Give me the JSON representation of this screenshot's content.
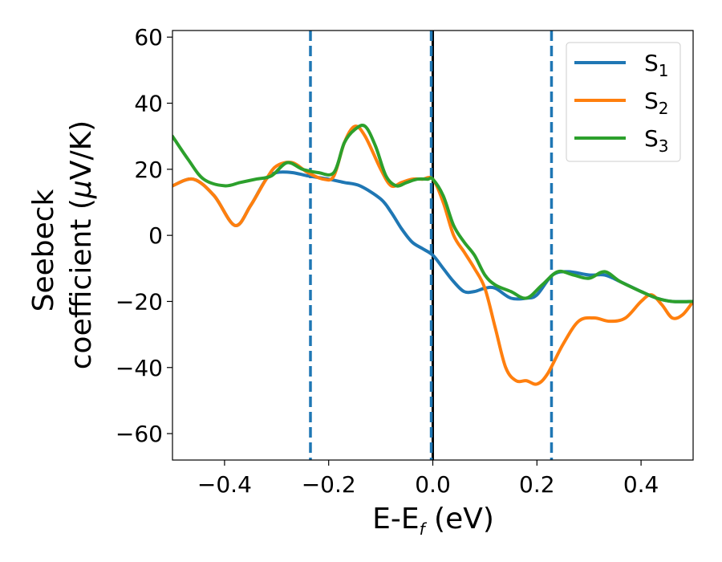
{
  "chart_data": {
    "type": "line",
    "xlabel": {
      "main": "E-E",
      "sub": "f",
      "rest": " (eV)"
    },
    "ylabel": {
      "line1": "Seebeck",
      "line2_prefix": "coefficient  (",
      "line2_mu": "μ",
      "line2_suffix": "V/K)"
    },
    "xlim": [
      -0.5,
      0.5
    ],
    "ylim": [
      -68,
      62
    ],
    "xticks": [
      -0.4,
      -0.2,
      0.0,
      0.2,
      0.4
    ],
    "xtick_labels": [
      "−0.4",
      "−0.2",
      "0.0",
      "0.2",
      "0.4"
    ],
    "yticks": [
      -60,
      -40,
      -20,
      0,
      20,
      40,
      60
    ],
    "ytick_labels": [
      "−60",
      "−40",
      "−20",
      "0",
      "20",
      "40",
      "60"
    ],
    "legend_position": "top-right",
    "vlines": [
      {
        "x": -0.235,
        "style": "dashed",
        "color": "#1f77b4"
      },
      {
        "x": 0.0,
        "style": "solid",
        "color": "#000000"
      },
      {
        "x": -0.003,
        "style": "dashed",
        "color": "#1f77b4"
      },
      {
        "x": 0.228,
        "style": "dashed",
        "color": "#1f77b4"
      }
    ],
    "series": [
      {
        "name_main": "S",
        "name_sub": "1",
        "color": "#1f77b4",
        "x": [
          -0.5,
          -0.46,
          -0.42,
          -0.38,
          -0.35,
          -0.32,
          -0.3,
          -0.27,
          -0.24,
          -0.2,
          -0.17,
          -0.14,
          -0.1,
          -0.08,
          -0.06,
          -0.04,
          -0.02,
          0.0,
          0.02,
          0.04,
          0.06,
          0.08,
          0.1,
          0.12,
          0.15,
          0.18,
          0.2,
          0.23,
          0.26,
          0.3,
          0.33,
          0.36,
          0.4,
          0.43,
          0.46,
          0.5
        ],
        "y": [
          15,
          17,
          12,
          3,
          9,
          17,
          19,
          19,
          18,
          17,
          16,
          15,
          11,
          7,
          2,
          -2,
          -4,
          -6,
          -10,
          -14,
          -17,
          -17,
          -16,
          -16,
          -19,
          -19,
          -18,
          -12,
          -11,
          -12,
          -12,
          -14,
          -17,
          -19,
          -20,
          -20
        ]
      },
      {
        "name_main": "S",
        "name_sub": "2",
        "color": "#ff7f0e",
        "x": [
          -0.5,
          -0.46,
          -0.42,
          -0.38,
          -0.35,
          -0.32,
          -0.3,
          -0.27,
          -0.24,
          -0.21,
          -0.19,
          -0.17,
          -0.15,
          -0.13,
          -0.1,
          -0.08,
          -0.06,
          -0.04,
          -0.02,
          0.0,
          0.02,
          0.04,
          0.06,
          0.08,
          0.1,
          0.12,
          0.14,
          0.16,
          0.18,
          0.2,
          0.22,
          0.25,
          0.28,
          0.31,
          0.34,
          0.37,
          0.4,
          0.42,
          0.44,
          0.46,
          0.48,
          0.5
        ],
        "y": [
          15,
          17,
          12,
          3,
          9,
          17,
          21,
          22,
          19,
          17,
          18,
          28,
          33,
          30,
          20,
          15,
          16,
          17,
          17,
          17,
          10,
          0,
          -5,
          -10,
          -16,
          -28,
          -40,
          -44,
          -44,
          -45,
          -42,
          -33,
          -26,
          -25,
          -26,
          -25,
          -20,
          -18,
          -21,
          -25,
          -24,
          -20
        ]
      },
      {
        "name_main": "S",
        "name_sub": "3",
        "color": "#2ca02c",
        "x": [
          -0.5,
          -0.47,
          -0.44,
          -0.4,
          -0.37,
          -0.34,
          -0.31,
          -0.28,
          -0.25,
          -0.22,
          -0.19,
          -0.17,
          -0.15,
          -0.13,
          -0.11,
          -0.09,
          -0.07,
          -0.05,
          -0.03,
          -0.01,
          0.0,
          0.02,
          0.04,
          0.06,
          0.08,
          0.1,
          0.12,
          0.15,
          0.18,
          0.21,
          0.24,
          0.27,
          0.3,
          0.33,
          0.36,
          0.4,
          0.43,
          0.46,
          0.5
        ],
        "y": [
          30,
          23,
          17,
          15,
          16,
          17,
          18,
          22,
          20,
          19,
          19,
          28,
          32,
          33,
          27,
          18,
          15,
          16,
          17,
          17,
          17,
          12,
          3,
          -2,
          -6,
          -12,
          -15,
          -17,
          -19,
          -15,
          -11,
          -12,
          -13,
          -11,
          -14,
          -17,
          -19,
          -20,
          -20
        ]
      }
    ]
  }
}
